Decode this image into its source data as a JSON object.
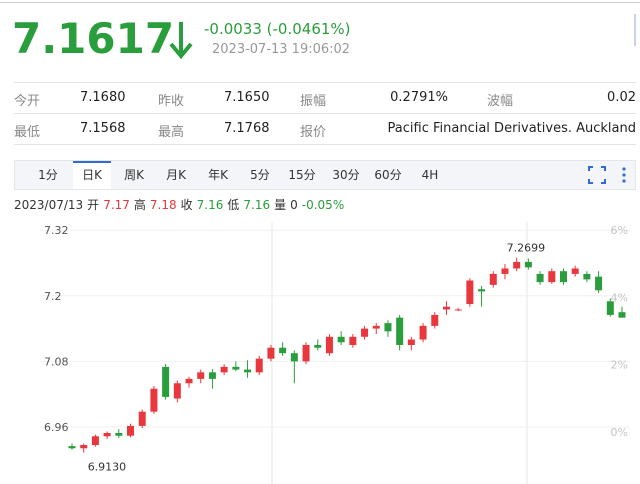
{
  "header": {
    "price": "7.1617",
    "change": "-0.0033 (-0.0461%)",
    "time": "2023-07-13 19:06:02"
  },
  "stats": {
    "rows": [
      [
        {
          "label": "今开",
          "value": "7.1680"
        },
        {
          "label": "昨收",
          "value": "7.1650"
        },
        {
          "label": "振幅",
          "value": "0.2791%"
        },
        {
          "label": "波幅",
          "value": "0.02"
        }
      ],
      [
        {
          "label": "最低",
          "value": "7.1568"
        },
        {
          "label": "最高",
          "value": "7.1768"
        },
        {
          "label": "报价",
          "value": "Pacific Financial Derivatives. Auckland"
        }
      ]
    ]
  },
  "tabs": {
    "items": [
      "1分",
      "日K",
      "周K",
      "月K",
      "年K",
      "5分",
      "15分",
      "30分",
      "60分",
      "4H"
    ],
    "active": 1
  },
  "info": {
    "date": "2023/07/13",
    "items": [
      {
        "label": "开",
        "value": "7.17",
        "color": "#e8383d"
      },
      {
        "label": "高",
        "value": "7.18",
        "color": "#e8383d"
      },
      {
        "label": "收",
        "value": "7.16",
        "color": "#2a9d3c"
      },
      {
        "label": "低",
        "value": "7.16",
        "color": "#2a9d3c"
      },
      {
        "label": "量",
        "value": "0",
        "color": "#333333"
      }
    ],
    "change": "-0.05%",
    "change_color": "#2a9d3c"
  },
  "chart_data": {
    "type": "candlestick",
    "open": [
      6.925,
      6.921,
      6.927,
      6.943,
      6.949,
      6.944,
      6.962,
      6.988,
      7.07,
      7.012,
      7.04,
      7.048,
      7.06,
      7.06,
      7.07,
      7.065,
      7.06,
      7.085,
      7.105,
      7.095,
      7.08,
      7.11,
      7.095,
      7.125,
      7.11,
      7.125,
      7.14,
      7.15,
      7.16,
      7.11,
      7.12,
      7.145,
      7.175,
      7.175,
      7.185,
      7.212,
      7.22,
      7.24,
      7.25,
      7.262,
      7.24,
      7.225,
      7.245,
      7.24,
      7.24,
      7.235,
      7.19,
      7.17
    ],
    "high": [
      6.93,
      6.93,
      6.946,
      6.952,
      6.956,
      6.966,
      6.992,
      7.035,
      7.075,
      7.045,
      7.052,
      7.065,
      7.066,
      7.075,
      7.08,
      7.082,
      7.09,
      7.11,
      7.115,
      7.1,
      7.115,
      7.12,
      7.13,
      7.135,
      7.13,
      7.145,
      7.15,
      7.155,
      7.165,
      7.125,
      7.15,
      7.17,
      7.19,
      7.178,
      7.232,
      7.218,
      7.245,
      7.258,
      7.2699,
      7.268,
      7.245,
      7.25,
      7.25,
      7.255,
      7.245,
      7.245,
      7.195,
      7.18
    ],
    "low": [
      6.918,
      6.913,
      6.924,
      6.938,
      6.94,
      6.941,
      6.958,
      6.984,
      7.01,
      7.005,
      7.032,
      7.04,
      7.03,
      7.055,
      7.062,
      7.05,
      7.055,
      7.08,
      7.09,
      7.04,
      7.075,
      7.1,
      7.09,
      7.11,
      7.105,
      7.12,
      7.13,
      7.125,
      7.1,
      7.1,
      7.115,
      7.14,
      7.165,
      7.172,
      7.18,
      7.18,
      7.215,
      7.23,
      7.245,
      7.248,
      7.22,
      7.222,
      7.22,
      7.235,
      7.225,
      7.205,
      7.162,
      7.16
    ],
    "close": [
      6.921,
      6.927,
      6.943,
      6.949,
      6.944,
      6.962,
      6.988,
      7.03,
      7.015,
      7.04,
      7.048,
      7.06,
      7.048,
      7.07,
      7.065,
      7.06,
      7.085,
      7.105,
      7.095,
      7.08,
      7.11,
      7.105,
      7.125,
      7.115,
      7.125,
      7.14,
      7.145,
      7.135,
      7.11,
      7.12,
      7.145,
      7.165,
      7.18,
      7.175,
      7.228,
      7.208,
      7.24,
      7.25,
      7.262,
      7.252,
      7.225,
      7.245,
      7.225,
      7.25,
      7.23,
      7.21,
      7.165,
      7.16
    ],
    "up_color": "#e8383d",
    "down_color": "#2a9d3c",
    "ylim": [
      6.863,
      7.335
    ],
    "yticks": [
      6.96,
      7.08,
      7.2,
      7.32
    ],
    "y2lim": [
      -1.43,
      6.24
    ],
    "y2ticks": [
      {
        "value": 0,
        "label": "0%"
      },
      {
        "value": 2,
        "label": "2%"
      },
      {
        "value": 4,
        "label": "4%"
      },
      {
        "value": 6,
        "label": "6%"
      }
    ],
    "high_label": "7.2699",
    "low_label": "6.9130",
    "grid": true
  }
}
